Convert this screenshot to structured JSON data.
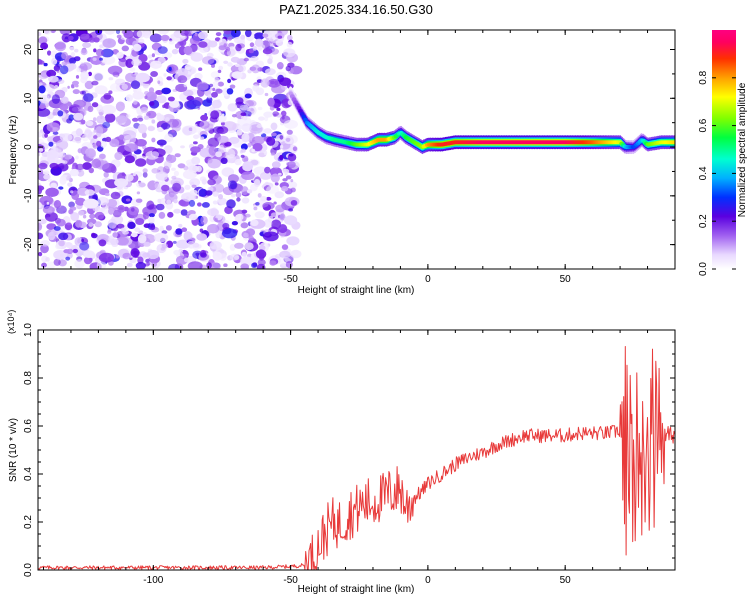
{
  "title": "PAZ1.2025.334.16.50.G30",
  "chart_data": [
    {
      "type": "heatmap",
      "xlabel": "Height of straight line (km)",
      "ylabel": "Frequency (Hz)",
      "xlim": [
        -142,
        90
      ],
      "ylim": [
        -25,
        24
      ],
      "xticks": [
        -100,
        -50,
        0,
        50
      ],
      "xtick_labels": [
        "-100",
        "-50",
        "0",
        "50"
      ],
      "yticks": [
        -20,
        -10,
        0,
        10,
        20
      ],
      "ytick_labels": [
        "-20",
        "-10",
        "0",
        "10",
        "20"
      ],
      "colorbar": {
        "label": "Normalized spectral amplitude",
        "range": [
          0,
          1
        ],
        "ticks": [
          0.0,
          0.2,
          0.4,
          0.6,
          0.8
        ],
        "tick_labels": [
          "0.0",
          "0.2",
          "0.4",
          "0.6",
          "0.8"
        ]
      },
      "noise_region_x": [
        -142,
        -48
      ],
      "ridge": {
        "x": [
          -50,
          -47,
          -44,
          -40,
          -37,
          -34,
          -30,
          -26,
          -22,
          -18,
          -15,
          -12,
          -10,
          -8,
          -5,
          -2,
          0,
          5,
          10,
          20,
          30,
          40,
          50,
          60,
          70,
          72,
          75,
          78,
          80,
          85,
          90
        ],
        "y": [
          11,
          8,
          5,
          3,
          2,
          1.5,
          1,
          0.5,
          0.5,
          1.5,
          1.5,
          2,
          3,
          2,
          1,
          0,
          0.5,
          0.5,
          1,
          1,
          1,
          1,
          1,
          1,
          1,
          0,
          0,
          1.5,
          0.5,
          1,
          1
        ],
        "amplitude": [
          0.1,
          0.2,
          0.35,
          0.45,
          0.45,
          0.5,
          0.5,
          0.6,
          0.7,
          0.8,
          0.8,
          0.6,
          0.45,
          0.55,
          0.6,
          0.65,
          0.8,
          0.9,
          0.9,
          0.95,
          0.95,
          0.95,
          0.95,
          0.85,
          0.7,
          0.4,
          0.3,
          0.4,
          0.6,
          0.7,
          0.75
        ]
      }
    },
    {
      "type": "line",
      "xlabel": "Height of straight line (km)",
      "ylabel": "SNR (10 * v/v)",
      "y_multiplier": "(x10⁴)",
      "xlim": [
        -142,
        90
      ],
      "ylim": [
        0,
        1.0
      ],
      "xticks": [
        -100,
        -50,
        0,
        50
      ],
      "xtick_labels": [
        "-100",
        "-50",
        "0",
        "50"
      ],
      "yticks": [
        0,
        0.2,
        0.4,
        0.6,
        0.8,
        1.0
      ],
      "ytick_labels": [
        "0.0",
        "0.2",
        "0.4",
        "0.6",
        "0.8",
        "1.0"
      ],
      "series": [
        {
          "color": "#e83a3a",
          "x": [
            -142,
            -130,
            -120,
            -110,
            -100,
            -90,
            -80,
            -70,
            -60,
            -50,
            -45,
            -42,
            -40,
            -38,
            -36,
            -34,
            -32,
            -30,
            -28,
            -26,
            -24,
            -22,
            -20,
            -18,
            -16,
            -14,
            -12,
            -10,
            -8,
            -6,
            -4,
            -2,
            0,
            5,
            10,
            15,
            20,
            25,
            30,
            35,
            40,
            45,
            50,
            55,
            60,
            65,
            70,
            72,
            74,
            76,
            78,
            80,
            82,
            84,
            86,
            88,
            90
          ],
          "y": [
            0.01,
            0.01,
            0.01,
            0.01,
            0.01,
            0.01,
            0.01,
            0.01,
            0.01,
            0.015,
            0.02,
            0.05,
            0.1,
            0.14,
            0.18,
            0.2,
            0.19,
            0.22,
            0.24,
            0.25,
            0.27,
            0.28,
            0.28,
            0.3,
            0.3,
            0.32,
            0.33,
            0.34,
            0.26,
            0.29,
            0.31,
            0.33,
            0.36,
            0.4,
            0.44,
            0.47,
            0.49,
            0.52,
            0.54,
            0.56,
            0.56,
            0.56,
            0.56,
            0.57,
            0.57,
            0.57,
            0.58,
            0.5,
            0.52,
            0.55,
            0.5,
            0.55,
            0.52,
            0.58,
            0.56,
            0.56,
            0.57
          ]
        }
      ]
    }
  ]
}
